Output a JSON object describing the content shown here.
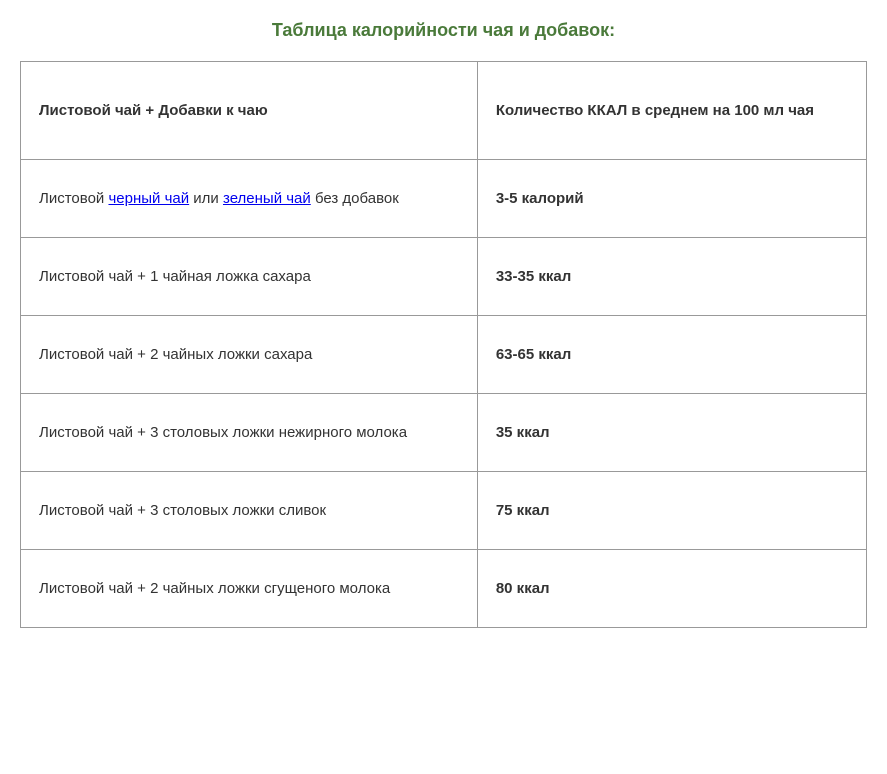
{
  "title": "Таблица калорийности чая и добавок:",
  "table": {
    "header": {
      "col1": "Листовой чай + Добавки к чаю",
      "col2": "Количество ККАЛ в среднем  на 100 мл чая"
    },
    "rows": [
      {
        "label_prefix": "Листовой ",
        "link1_text": "черный чай",
        "label_mid": " или ",
        "link2_text": "зеленый чай",
        "label_suffix": " без добавок",
        "has_links": true,
        "value": "3-5 калорий"
      },
      {
        "label": "Листовой чай + 1 чайная ложка сахара",
        "has_links": false,
        "value": "33-35 ккал"
      },
      {
        "label": "Листовой чай + 2 чайных ложки сахара",
        "has_links": false,
        "value": "63-65 ккал"
      },
      {
        "label": "Листовой чай + 3 столовых ложки нежирного молока",
        "has_links": false,
        "value": "35 ккал"
      },
      {
        "label": "Листовой чай + 3 столовых ложки сливок",
        "has_links": false,
        "value": "75 ккал"
      },
      {
        "label": "Листовой чай + 2 чайных ложки сгущеного молока",
        "has_links": false,
        "value": "80 ккал"
      }
    ]
  },
  "styling": {
    "title_color": "#4a7a3a",
    "title_fontsize": 18,
    "border_color": "#999999",
    "text_color": "#333333",
    "link_color": "#0000ee",
    "background_color": "#ffffff",
    "cell_fontsize": 15,
    "cell_padding_v": 30,
    "cell_padding_h": 18,
    "header_padding_v": 40,
    "col_left_width_pct": 54,
    "col_right_width_pct": 46
  }
}
